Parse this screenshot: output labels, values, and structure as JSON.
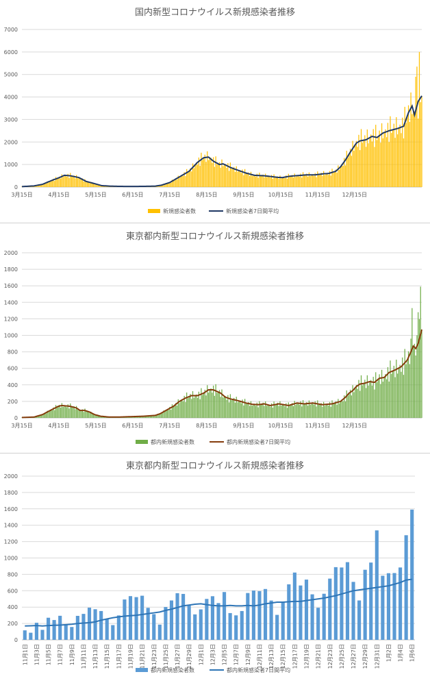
{
  "chart_data": [
    {
      "type": "bar",
      "title": "国内新型コロナウイルス新規感染者推移",
      "ylim": [
        0,
        7000
      ],
      "yticks": [
        0,
        1000,
        2000,
        3000,
        4000,
        5000,
        6000,
        7000
      ],
      "x_ticks": [
        "3月15日",
        "4月15日",
        "5月15日",
        "6月15日",
        "7月15日",
        "8月15日",
        "9月15日",
        "10月15日",
        "11月15日",
        "12月15日"
      ],
      "series": [
        {
          "name": "新規感染者数",
          "kind": "bar",
          "color": "#ffc000"
        },
        {
          "name": "新規感染者7日間平均",
          "kind": "line",
          "color": "#1f3864"
        }
      ],
      "avg_keypoints": [
        [
          0,
          20
        ],
        [
          10,
          50
        ],
        [
          17,
          120
        ],
        [
          25,
          300
        ],
        [
          31,
          420
        ],
        [
          35,
          520
        ],
        [
          40,
          500
        ],
        [
          47,
          420
        ],
        [
          53,
          250
        ],
        [
          60,
          150
        ],
        [
          66,
          60
        ],
        [
          73,
          40
        ],
        [
          80,
          30
        ],
        [
          90,
          25
        ],
        [
          100,
          30
        ],
        [
          110,
          40
        ],
        [
          115,
          80
        ],
        [
          122,
          200
        ],
        [
          130,
          450
        ],
        [
          138,
          700
        ],
        [
          145,
          1100
        ],
        [
          150,
          1300
        ],
        [
          154,
          1330
        ],
        [
          158,
          1150
        ],
        [
          163,
          1000
        ],
        [
          166,
          1030
        ],
        [
          172,
          870
        ],
        [
          178,
          750
        ],
        [
          185,
          620
        ],
        [
          192,
          520
        ],
        [
          200,
          500
        ],
        [
          205,
          470
        ],
        [
          211,
          430
        ],
        [
          215,
          420
        ],
        [
          221,
          480
        ],
        [
          228,
          510
        ],
        [
          235,
          540
        ],
        [
          242,
          540
        ],
        [
          249,
          590
        ],
        [
          253,
          600
        ],
        [
          259,
          700
        ],
        [
          263,
          900
        ],
        [
          267,
          1200
        ],
        [
          271,
          1550
        ],
        [
          276,
          1950
        ],
        [
          279,
          2050
        ],
        [
          284,
          2100
        ],
        [
          289,
          2250
        ],
        [
          293,
          2200
        ],
        [
          298,
          2400
        ],
        [
          303,
          2500
        ],
        [
          310,
          2600
        ],
        [
          315,
          2700
        ],
        [
          319,
          3300
        ],
        [
          322,
          3600
        ],
        [
          324,
          3200
        ],
        [
          327,
          3800
        ],
        [
          330,
          4050
        ]
      ],
      "bar_ratio_pattern": [
        1.05,
        0.9,
        1.15,
        0.8,
        1.25,
        0.95,
        1.0,
        1.1,
        0.85,
        1.2,
        0.9,
        1.0
      ],
      "bar_overrides": [
        [
          325,
          4900
        ],
        [
          326,
          5350
        ],
        [
          328,
          6000
        ]
      ],
      "n_days": 330
    },
    {
      "type": "bar",
      "title": "東京都内新型コロナウイルス新規感染者推移",
      "ylim": [
        0,
        2000
      ],
      "yticks": [
        0,
        200,
        400,
        600,
        800,
        1000,
        1200,
        1400,
        1600,
        1800,
        2000
      ],
      "x_ticks": [
        "3月15日",
        "4月15日",
        "5月15日",
        "6月15日",
        "7月15日",
        "8月15日",
        "9月15日",
        "10月15日",
        "11月15日",
        "12月15日"
      ],
      "series": [
        {
          "name": "都内新規感染者数",
          "kind": "bar",
          "color": "#70ad47"
        },
        {
          "name": "都内新規感染者7日間平均",
          "kind": "line",
          "color": "#843c0c"
        }
      ],
      "avg_keypoints": [
        [
          0,
          5
        ],
        [
          10,
          10
        ],
        [
          17,
          40
        ],
        [
          22,
          80
        ],
        [
          26,
          110
        ],
        [
          30,
          140
        ],
        [
          33,
          150
        ],
        [
          40,
          140
        ],
        [
          45,
          120
        ],
        [
          48,
          90
        ],
        [
          52,
          90
        ],
        [
          56,
          70
        ],
        [
          60,
          40
        ],
        [
          65,
          20
        ],
        [
          72,
          10
        ],
        [
          80,
          10
        ],
        [
          90,
          15
        ],
        [
          100,
          20
        ],
        [
          110,
          30
        ],
        [
          114,
          50
        ],
        [
          120,
          100
        ],
        [
          125,
          140
        ],
        [
          130,
          200
        ],
        [
          135,
          240
        ],
        [
          140,
          270
        ],
        [
          145,
          270
        ],
        [
          150,
          300
        ],
        [
          154,
          340
        ],
        [
          158,
          340
        ],
        [
          164,
          300
        ],
        [
          168,
          250
        ],
        [
          172,
          230
        ],
        [
          178,
          210
        ],
        [
          185,
          180
        ],
        [
          190,
          165
        ],
        [
          195,
          160
        ],
        [
          200,
          170
        ],
        [
          205,
          150
        ],
        [
          212,
          170
        ],
        [
          220,
          150
        ],
        [
          227,
          180
        ],
        [
          233,
          170
        ],
        [
          240,
          180
        ],
        [
          248,
          160
        ],
        [
          256,
          170
        ],
        [
          263,
          200
        ],
        [
          267,
          250
        ],
        [
          270,
          300
        ],
        [
          273,
          330
        ],
        [
          276,
          380
        ],
        [
          279,
          410
        ],
        [
          283,
          420
        ],
        [
          287,
          440
        ],
        [
          291,
          430
        ],
        [
          295,
          480
        ],
        [
          299,
          490
        ],
        [
          303,
          550
        ],
        [
          308,
          580
        ],
        [
          313,
          620
        ],
        [
          318,
          700
        ],
        [
          321,
          800
        ],
        [
          323,
          870
        ],
        [
          325,
          840
        ],
        [
          327,
          900
        ],
        [
          330,
          1070
        ]
      ],
      "bar_ratio_pattern": [
        1.05,
        0.9,
        1.15,
        0.8,
        1.25,
        0.95,
        1.0,
        1.1,
        0.85,
        1.2,
        0.9,
        1.0
      ],
      "bar_overrides": [
        [
          322,
          1330
        ],
        [
          327,
          1280
        ],
        [
          329,
          1590
        ]
      ],
      "n_days": 330
    },
    {
      "type": "bar",
      "title": "東京都内新型コロナウイルス新規感染者推移",
      "ylim": [
        0,
        2000
      ],
      "yticks": [
        0,
        200,
        400,
        600,
        800,
        1000,
        1200,
        1400,
        1600,
        1800,
        2000
      ],
      "categories": [
        "11月1日",
        "11月2日",
        "11月3日",
        "11月4日",
        "11月5日",
        "11月6日",
        "11月7日",
        "11月8日",
        "11月9日",
        "11月10日",
        "11月11日",
        "11月12日",
        "11月13日",
        "11月14日",
        "11月15日",
        "11月16日",
        "11月17日",
        "11月18日",
        "11月19日",
        "11月20日",
        "11月21日",
        "11月22日",
        "11月23日",
        "11月24日",
        "11月25日",
        "11月26日",
        "11月27日",
        "11月28日",
        "11月29日",
        "11月30日",
        "12月1日",
        "12月2日",
        "12月3日",
        "12月4日",
        "12月5日",
        "12月6日",
        "12月7日",
        "12月8日",
        "12月9日",
        "12月10日",
        "12月11日",
        "12月12日",
        "12月13日",
        "12月14日",
        "12月15日",
        "12月16日",
        "12月17日",
        "12月18日",
        "12月19日",
        "12月20日",
        "12月21日",
        "12月22日",
        "12月23日",
        "12月24日",
        "12月25日",
        "12月26日",
        "12月27日",
        "12月28日",
        "12月29日",
        "12月30日",
        "12月31日",
        "1月1日",
        "1月2日",
        "1月3日",
        "1月4日",
        "1月5日",
        "1月6日"
      ],
      "tick_labels": [
        "11月1日",
        "11月3日",
        "11月5日",
        "11月7日",
        "11月9日",
        "11月11日",
        "11月13日",
        "11月15日",
        "11月17日",
        "11月19日",
        "11月21日",
        "11月23日",
        "11月25日",
        "11月27日",
        "11月29日",
        "12月1日",
        "12月3日",
        "12月5日",
        "12月7日",
        "12月9日",
        "12月11日",
        "12月13日",
        "12月15日",
        "12月17日",
        "12月19日",
        "12月21日",
        "12月23日",
        "12月25日",
        "12月27日",
        "12月29日",
        "12月31日",
        "1月2日",
        "1月4日",
        "1月6日"
      ],
      "series": [
        {
          "name": "都内新規感染者数",
          "kind": "bar",
          "color": "#5b9bd5",
          "values": [
            116,
            87,
            209,
            122,
            270,
            242,
            294,
            189,
            157,
            293,
            317,
            393,
            374,
            352,
            255,
            180,
            298,
            493,
            534,
            522,
            539,
            391,
            314,
            186,
            401,
            481,
            570,
            561,
            418,
            311,
            372,
            500,
            533,
            449,
            584,
            327,
            299,
            352,
            572,
            602,
            595,
            621,
            480,
            305,
            460,
            678,
            822,
            664,
            736,
            556,
            392,
            563,
            748,
            888,
            884,
            949,
            708,
            481,
            856,
            944,
            1337,
            783,
            814,
            816,
            884,
            1278,
            1591
          ]
        },
        {
          "name": "都内新規感染者7日間平均",
          "kind": "line",
          "color": "#2e75b6",
          "values": [
            170,
            172,
            175,
            170,
            175,
            178,
            180,
            185,
            190,
            200,
            205,
            210,
            220,
            240,
            255,
            270,
            280,
            290,
            295,
            300,
            310,
            320,
            330,
            340,
            360,
            375,
            395,
            415,
            425,
            435,
            440,
            430,
            420,
            415,
            415,
            420,
            415,
            415,
            420,
            415,
            425,
            440,
            450,
            460,
            460,
            465,
            470,
            470,
            480,
            490,
            500,
            510,
            525,
            540,
            560,
            580,
            600,
            610,
            620,
            630,
            640,
            650,
            660,
            680,
            700,
            730,
            740
          ]
        }
      ]
    }
  ]
}
